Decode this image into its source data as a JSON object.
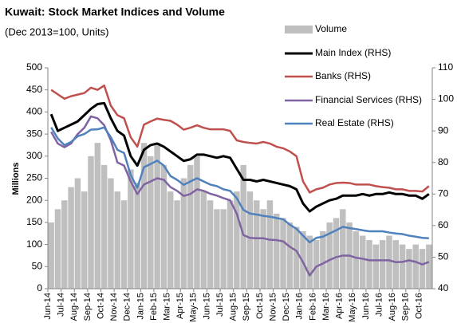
{
  "chart_data": {
    "type": "combo",
    "title": "Kuwait: Stock Market Indices and Volume",
    "subtitle": "(Dec 2013=100, Units)",
    "y_label": "Millions",
    "categories": [
      "Jun-14",
      null,
      "Jul-14",
      null,
      "Aug-14",
      null,
      "Sep-14",
      null,
      "Oct-14",
      null,
      "Nov-14",
      null,
      "Dec-14",
      null,
      "Jan-15",
      null,
      "Feb-15",
      null,
      "Mar-15",
      null,
      "Apr-15",
      null,
      "May-15",
      null,
      "Jun-15",
      null,
      "Jul-15",
      null,
      "Aug-15",
      null,
      "Sep-15",
      null,
      "Oct-15",
      null,
      "Nov-15",
      null,
      "Dec-15",
      null,
      "Jan-16",
      null,
      "Feb-16",
      null,
      "Mar-16",
      null,
      "Apr-16",
      null,
      "May-16",
      null,
      "Jun-16",
      null,
      "Jul-16",
      null,
      "Aug-16",
      null,
      "Sep-16",
      null,
      "Oct-16",
      null
    ],
    "ylim": [
      0,
      500
    ],
    "yticks": [
      0,
      50,
      100,
      150,
      200,
      250,
      300,
      350,
      400,
      450,
      500
    ],
    "y2lim": [
      40,
      110
    ],
    "y2ticks": [
      40,
      50,
      60,
      70,
      80,
      90,
      100,
      110
    ],
    "series": [
      {
        "name": "Volume",
        "type": "bar",
        "axis": "y",
        "color": "#bfbfbf",
        "values": [
          150,
          180,
          200,
          230,
          250,
          220,
          300,
          330,
          280,
          250,
          220,
          200,
          270,
          240,
          330,
          300,
          330,
          280,
          220,
          200,
          250,
          280,
          300,
          220,
          200,
          180,
          180,
          200,
          220,
          280,
          220,
          200,
          180,
          200,
          170,
          160,
          150,
          140,
          130,
          120,
          110,
          130,
          150,
          160,
          180,
          150,
          130,
          120,
          110,
          100,
          110,
          120,
          110,
          100,
          90,
          100,
          90,
          100
        ]
      },
      {
        "name": "Main Index (RHS)",
        "type": "line",
        "axis": "y2",
        "color": "#000000",
        "width": 3,
        "values": [
          95.3,
          90,
          91,
          92,
          93,
          95,
          97,
          98.5,
          98.8,
          94,
          90,
          88.5,
          82,
          79,
          84,
          85.5,
          86,
          85,
          83.5,
          82,
          80.5,
          81,
          82.5,
          82.5,
          82,
          81.5,
          82,
          81.5,
          78,
          74.5,
          74.5,
          74,
          74.5,
          74,
          73.5,
          73,
          72.5,
          71.5,
          67,
          64.5,
          66,
          67,
          68,
          68.5,
          69.5,
          69.5,
          69.5,
          70,
          69.5,
          70,
          70,
          70.5,
          70,
          70,
          69.5,
          69.5,
          68.5,
          70
        ]
      },
      {
        "name": "Banks (RHS)",
        "type": "line",
        "axis": "y2",
        "color": "#c0504d",
        "width": 2.5,
        "values": [
          103,
          101.6,
          100.2,
          101,
          101.5,
          102,
          103.7,
          103,
          104.4,
          98,
          95,
          94,
          88,
          85,
          92,
          93,
          93.9,
          93.5,
          93.2,
          92,
          90.4,
          91,
          91.8,
          91,
          90.5,
          90.5,
          90.5,
          90,
          87,
          86.5,
          86.2,
          86,
          86.5,
          86,
          85,
          84.5,
          83.5,
          82,
          74,
          70.5,
          71.5,
          72,
          73,
          73.5,
          73.6,
          73.5,
          73,
          73,
          73,
          72.5,
          72.2,
          72,
          71.5,
          71.5,
          71,
          71,
          70.8,
          72.5
        ]
      },
      {
        "name": "Financial Services (RHS)",
        "type": "line",
        "axis": "y2",
        "color": "#8064a2",
        "width": 2.5,
        "values": [
          89.7,
          86,
          84.8,
          86,
          89,
          91,
          94.6,
          94,
          91.8,
          87,
          80,
          79,
          74,
          70,
          73,
          74,
          75,
          74.5,
          72.2,
          71,
          69.4,
          70,
          71.5,
          71,
          70.1,
          69.5,
          68.7,
          68,
          63.8,
          57,
          56.1,
          56,
          56,
          55.5,
          55.4,
          55,
          53.3,
          52,
          48.4,
          44.2,
          47,
          48,
          49.1,
          50,
          50.5,
          50.5,
          49.8,
          49.5,
          49,
          49,
          49,
          49,
          48.4,
          48.5,
          49,
          48.5,
          47.7,
          48.5
        ]
      },
      {
        "name": "Real Estate (RHS)",
        "type": "line",
        "axis": "y2",
        "color": "#4f81bd",
        "width": 2.5,
        "values": [
          91.1,
          87.6,
          85.5,
          86.5,
          88.3,
          89,
          90.4,
          90.5,
          91.1,
          88,
          84,
          83,
          76,
          72,
          78.5,
          79.5,
          80.6,
          79,
          75.7,
          74.5,
          72.9,
          74,
          75,
          74,
          73,
          72.5,
          71.5,
          71,
          68.7,
          65,
          63.8,
          63.5,
          63.1,
          62.8,
          62.4,
          62,
          60.3,
          59,
          56.8,
          54.7,
          56.1,
          56.5,
          57.5,
          58.5,
          59.6,
          59.2,
          58.9,
          58.5,
          58.2,
          58.2,
          58.2,
          57.8,
          57.5,
          57.3,
          56.8,
          56.5,
          56.1,
          56
        ]
      }
    ]
  }
}
